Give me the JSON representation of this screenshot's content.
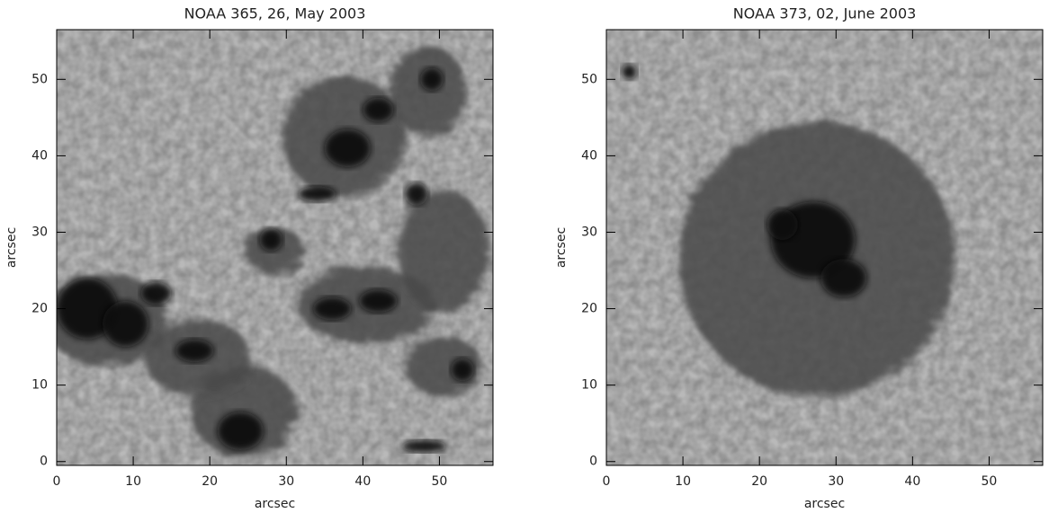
{
  "chart_data": [
    {
      "type": "image",
      "title": "NOAA 365, 26, May 2003",
      "xlabel": "arcsec",
      "ylabel": "arcsec",
      "xlim": [
        0,
        57
      ],
      "ylim": [
        -0.5,
        56.5
      ],
      "xticks": [
        0,
        10,
        20,
        30,
        40,
        50
      ],
      "yticks": [
        0,
        10,
        20,
        30,
        40,
        50
      ]
    },
    {
      "type": "image",
      "title": "NOAA 373, 02, June 2003",
      "xlabel": "arcsec",
      "ylabel": "arcsec",
      "xlim": [
        0,
        57
      ],
      "ylim": [
        -0.5,
        56.5
      ],
      "xticks": [
        0,
        10,
        20,
        30,
        40,
        50
      ],
      "yticks": [
        0,
        10,
        20,
        30,
        40,
        50
      ]
    }
  ]
}
